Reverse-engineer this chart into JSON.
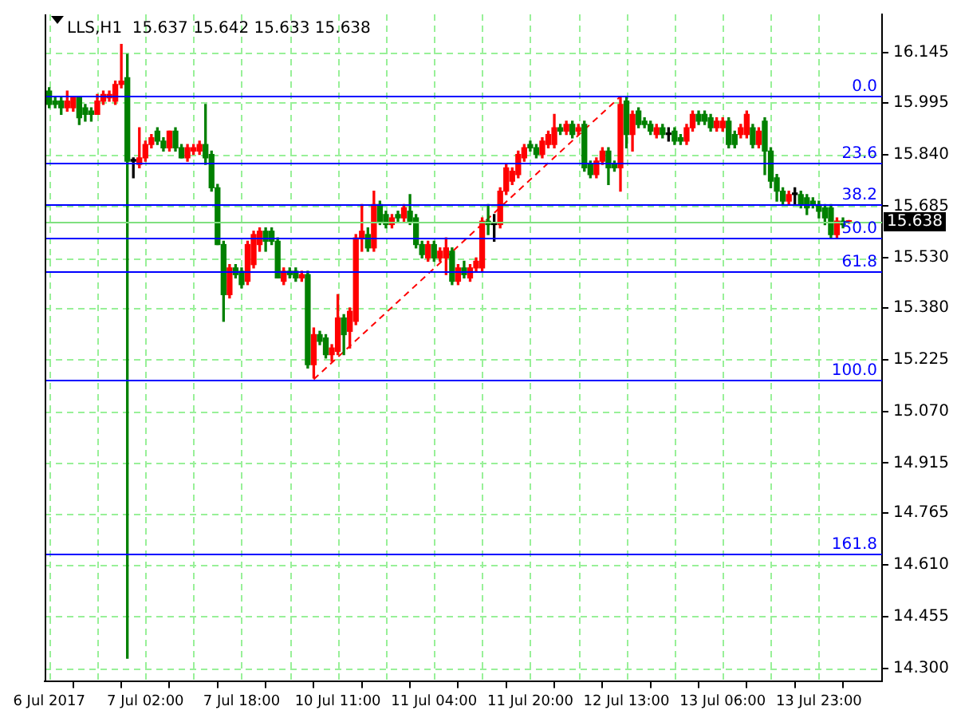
{
  "chart_data": {
    "type": "candlestick",
    "title": "LLS,H1  15.637 15.642 15.633 15.638",
    "categories": [
      "6 Jul 2017",
      null,
      null,
      null,
      null,
      null,
      null,
      null,
      null,
      null,
      null,
      null,
      null,
      null,
      null,
      null,
      "7 Jul 02:00",
      null,
      null,
      null,
      null,
      null,
      null,
      null,
      null,
      null,
      null,
      null,
      null,
      null,
      null,
      null,
      "7 Jul 18:00",
      null,
      null,
      null,
      null,
      null,
      null,
      null,
      null,
      null,
      null,
      null,
      null,
      null,
      null,
      null,
      "10 Jul 11:00",
      null,
      null,
      null,
      null,
      null,
      null,
      null,
      null,
      null,
      null,
      null,
      null,
      null,
      null,
      null,
      "11 Jul 04:00",
      null,
      null,
      null,
      null,
      null,
      null,
      null,
      null,
      null,
      null,
      null,
      null,
      null,
      null,
      null,
      "11 Jul 20:00",
      null,
      null,
      null,
      null,
      null,
      null,
      null,
      null,
      null,
      null,
      null,
      null,
      null,
      null,
      null,
      "12 Jul 13:00",
      null,
      null,
      null,
      null,
      null,
      null,
      null,
      null,
      null,
      null,
      null,
      null,
      null,
      null,
      null,
      "13 Jul 06:00",
      null,
      null,
      null,
      null,
      null,
      null,
      null,
      null,
      null,
      null,
      null,
      null,
      null,
      null,
      null,
      "13 Jul 23:00",
      null,
      null,
      null,
      null,
      null
    ],
    "ohlc": [
      [
        16.03,
        16.04,
        15.98,
        15.99
      ],
      [
        16.0,
        16.01,
        15.98,
        15.99
      ],
      [
        16.0,
        16.01,
        15.96,
        15.98
      ],
      [
        15.98,
        16.03,
        15.97,
        16.0
      ],
      [
        15.98,
        16.01,
        15.97,
        16.01
      ],
      [
        16.01,
        16.01,
        15.93,
        15.95
      ],
      [
        15.98,
        15.99,
        15.94,
        15.96
      ],
      [
        15.97,
        15.98,
        15.94,
        15.96
      ],
      [
        15.96,
        16.02,
        15.96,
        16.0
      ],
      [
        16.0,
        16.03,
        15.99,
        16.02
      ],
      [
        16.01,
        16.03,
        16.0,
        16.02
      ],
      [
        16.0,
        16.06,
        15.99,
        16.05
      ],
      [
        16.05,
        16.17,
        16.04,
        16.06
      ],
      [
        16.07,
        16.14,
        14.33,
        15.82
      ],
      [
        15.82,
        15.83,
        15.77,
        15.82
      ],
      [
        15.81,
        15.92,
        15.8,
        15.83
      ],
      [
        15.83,
        15.88,
        15.82,
        15.87
      ],
      [
        15.87,
        15.9,
        15.86,
        15.89
      ],
      [
        15.91,
        15.92,
        15.87,
        15.88
      ],
      [
        15.88,
        15.89,
        15.85,
        15.86
      ],
      [
        15.86,
        15.91,
        15.85,
        15.91
      ],
      [
        15.91,
        15.92,
        15.85,
        15.86
      ],
      [
        15.86,
        15.87,
        15.83,
        15.83
      ],
      [
        15.83,
        15.87,
        15.82,
        15.86
      ],
      [
        15.85,
        15.87,
        15.84,
        15.86
      ],
      [
        15.85,
        15.88,
        15.84,
        15.87
      ],
      [
        15.87,
        15.99,
        15.81,
        15.83
      ],
      [
        15.84,
        15.85,
        15.73,
        15.74
      ],
      [
        15.74,
        15.75,
        15.57,
        15.57
      ],
      [
        15.57,
        15.58,
        15.34,
        15.42
      ],
      [
        15.42,
        15.51,
        15.41,
        15.5
      ],
      [
        15.5,
        15.51,
        15.47,
        15.48
      ],
      [
        15.49,
        15.5,
        15.44,
        15.45
      ],
      [
        15.46,
        15.58,
        15.45,
        15.57
      ],
      [
        15.51,
        15.61,
        15.5,
        15.6
      ],
      [
        15.57,
        15.62,
        15.55,
        15.61
      ],
      [
        15.61,
        15.62,
        15.55,
        15.58
      ],
      [
        15.61,
        15.62,
        15.57,
        15.58
      ],
      [
        15.58,
        15.59,
        15.47,
        15.47
      ],
      [
        15.46,
        15.5,
        15.45,
        15.49
      ],
      [
        15.49,
        15.5,
        15.47,
        15.48
      ],
      [
        15.49,
        15.5,
        15.46,
        15.47
      ],
      [
        15.47,
        15.49,
        15.46,
        15.48
      ],
      [
        15.48,
        15.49,
        15.2,
        15.21
      ],
      [
        15.21,
        15.32,
        15.17,
        15.3
      ],
      [
        15.3,
        15.31,
        15.27,
        15.28
      ],
      [
        15.29,
        15.3,
        15.23,
        15.24
      ],
      [
        15.24,
        15.27,
        15.22,
        15.26
      ],
      [
        15.25,
        15.42,
        15.24,
        15.35
      ],
      [
        15.35,
        15.36,
        15.24,
        15.3
      ],
      [
        15.31,
        15.38,
        15.26,
        15.37
      ],
      [
        15.34,
        15.6,
        15.33,
        15.59
      ],
      [
        15.59,
        15.69,
        15.55,
        15.61
      ],
      [
        15.6,
        15.62,
        15.55,
        15.56
      ],
      [
        15.56,
        15.73,
        15.55,
        15.69
      ],
      [
        15.69,
        15.7,
        15.63,
        15.64
      ],
      [
        15.66,
        15.67,
        15.62,
        15.63
      ],
      [
        15.63,
        15.66,
        15.62,
        15.65
      ],
      [
        15.66,
        15.67,
        15.64,
        15.65
      ],
      [
        15.65,
        15.69,
        15.64,
        15.68
      ],
      [
        15.67,
        15.72,
        15.63,
        15.64
      ],
      [
        15.65,
        15.66,
        15.56,
        15.57
      ],
      [
        15.57,
        15.58,
        15.53,
        15.54
      ],
      [
        15.53,
        15.58,
        15.52,
        15.57
      ],
      [
        15.57,
        15.58,
        15.52,
        15.53
      ],
      [
        15.53,
        15.56,
        15.52,
        15.55
      ],
      [
        15.53,
        15.59,
        15.48,
        15.56
      ],
      [
        15.55,
        15.56,
        15.45,
        15.46
      ],
      [
        15.46,
        15.51,
        15.45,
        15.5
      ],
      [
        15.5,
        15.52,
        15.47,
        15.48
      ],
      [
        15.47,
        15.51,
        15.46,
        15.5
      ],
      [
        15.5,
        15.53,
        15.49,
        15.52
      ],
      [
        15.5,
        15.65,
        15.49,
        15.64
      ],
      [
        15.64,
        15.69,
        15.6,
        15.63
      ],
      [
        15.63,
        15.66,
        15.58,
        15.63
      ],
      [
        15.63,
        15.74,
        15.62,
        15.73
      ],
      [
        15.73,
        15.81,
        15.72,
        15.8
      ],
      [
        15.76,
        15.8,
        15.75,
        15.79
      ],
      [
        15.78,
        15.85,
        15.77,
        15.84
      ],
      [
        15.83,
        15.87,
        15.82,
        15.86
      ],
      [
        15.87,
        15.88,
        15.85,
        15.86
      ],
      [
        15.86,
        15.87,
        15.83,
        15.84
      ],
      [
        15.84,
        15.89,
        15.83,
        15.88
      ],
      [
        15.87,
        15.91,
        15.86,
        15.9
      ],
      [
        15.87,
        15.96,
        15.86,
        15.92
      ],
      [
        15.92,
        15.93,
        15.9,
        15.91
      ],
      [
        15.91,
        15.94,
        15.9,
        15.93
      ],
      [
        15.93,
        15.94,
        15.89,
        15.9
      ],
      [
        15.91,
        15.93,
        15.9,
        15.92
      ],
      [
        15.93,
        15.94,
        15.79,
        15.8
      ],
      [
        15.81,
        15.82,
        15.77,
        15.78
      ],
      [
        15.78,
        15.83,
        15.77,
        15.82
      ],
      [
        15.82,
        15.86,
        15.81,
        15.85
      ],
      [
        15.85,
        15.86,
        15.75,
        15.8
      ],
      [
        15.81,
        15.82,
        15.79,
        15.8
      ],
      [
        15.8,
        16.01,
        15.73,
        15.99
      ],
      [
        16.0,
        16.01,
        15.86,
        15.9
      ],
      [
        15.9,
        15.97,
        15.85,
        15.96
      ],
      [
        15.97,
        15.98,
        15.92,
        15.93
      ],
      [
        15.94,
        15.95,
        15.92,
        15.93
      ],
      [
        15.93,
        15.94,
        15.9,
        15.91
      ],
      [
        15.9,
        15.93,
        15.89,
        15.92
      ],
      [
        15.92,
        15.93,
        15.89,
        15.9
      ],
      [
        15.9,
        15.92,
        15.88,
        15.9
      ],
      [
        15.91,
        15.92,
        15.87,
        15.88
      ],
      [
        15.89,
        15.9,
        15.87,
        15.88
      ],
      [
        15.88,
        15.93,
        15.87,
        15.92
      ],
      [
        15.92,
        15.97,
        15.91,
        15.96
      ],
      [
        15.96,
        15.97,
        15.93,
        15.94
      ],
      [
        15.96,
        15.97,
        15.93,
        15.94
      ],
      [
        15.95,
        15.96,
        15.91,
        15.92
      ],
      [
        15.92,
        15.95,
        15.91,
        15.94
      ],
      [
        15.92,
        15.95,
        15.91,
        15.94
      ],
      [
        15.94,
        15.95,
        15.86,
        15.87
      ],
      [
        15.9,
        15.91,
        15.86,
        15.87
      ],
      [
        15.9,
        15.93,
        15.89,
        15.92
      ],
      [
        15.9,
        15.97,
        15.89,
        15.96
      ],
      [
        15.92,
        15.93,
        15.86,
        15.87
      ],
      [
        15.87,
        15.92,
        15.86,
        15.91
      ],
      [
        15.94,
        15.95,
        15.78,
        15.85
      ],
      [
        15.85,
        15.86,
        15.74,
        15.76
      ],
      [
        15.77,
        15.78,
        15.7,
        15.73
      ],
      [
        15.73,
        15.74,
        15.69,
        15.7
      ],
      [
        15.7,
        15.73,
        15.69,
        15.72
      ],
      [
        15.72,
        15.74,
        15.69,
        15.72
      ],
      [
        15.72,
        15.73,
        15.68,
        15.69
      ],
      [
        15.71,
        15.72,
        15.66,
        15.68
      ],
      [
        15.7,
        15.71,
        15.68,
        15.69
      ],
      [
        15.69,
        15.7,
        15.65,
        15.67
      ],
      [
        15.68,
        15.69,
        15.63,
        15.65
      ],
      [
        15.68,
        15.69,
        15.59,
        15.6
      ],
      [
        15.6,
        15.65,
        15.59,
        15.64
      ],
      [
        15.64,
        15.65,
        15.62,
        15.63
      ],
      [
        15.637,
        15.642,
        15.633,
        15.638
      ]
    ],
    "colors": [
      "#008000",
      "#008000",
      "#008000",
      "#ff0000",
      "#ff0000",
      "#008000",
      "#008000",
      "#008000",
      "#ff0000",
      "#ff0000",
      "#ff0000",
      "#ff0000",
      "#ff0000",
      "#008000",
      "#000000",
      "#ff0000",
      "#ff0000",
      "#ff0000",
      "#008000",
      "#008000",
      "#ff0000",
      "#008000",
      "#008000",
      "#ff0000",
      "#ff0000",
      "#ff0000",
      "#008000",
      "#008000",
      "#008000",
      "#008000",
      "#ff0000",
      "#008000",
      "#008000",
      "#ff0000",
      "#ff0000",
      "#ff0000",
      "#008000",
      "#008000",
      "#008000",
      "#ff0000",
      "#008000",
      "#008000",
      "#ff0000",
      "#008000",
      "#ff0000",
      "#008000",
      "#008000",
      "#ff0000",
      "#ff0000",
      "#008000",
      "#ff0000",
      "#ff0000",
      "#ff0000",
      "#008000",
      "#ff0000",
      "#008000",
      "#008000",
      "#ff0000",
      "#008000",
      "#ff0000",
      "#008000",
      "#008000",
      "#008000",
      "#ff0000",
      "#008000",
      "#ff0000",
      "#ff0000",
      "#008000",
      "#ff0000",
      "#008000",
      "#ff0000",
      "#ff0000",
      "#ff0000",
      "#008000",
      "#000000",
      "#ff0000",
      "#ff0000",
      "#ff0000",
      "#ff0000",
      "#ff0000",
      "#008000",
      "#008000",
      "#ff0000",
      "#ff0000",
      "#ff0000",
      "#008000",
      "#ff0000",
      "#008000",
      "#ff0000",
      "#008000",
      "#008000",
      "#ff0000",
      "#ff0000",
      "#008000",
      "#008000",
      "#ff0000",
      "#008000",
      "#ff0000",
      "#008000",
      "#008000",
      "#008000",
      "#ff0000",
      "#008000",
      "#000000",
      "#008000",
      "#008000",
      "#ff0000",
      "#ff0000",
      "#008000",
      "#008000",
      "#008000",
      "#ff0000",
      "#ff0000",
      "#008000",
      "#008000",
      "#ff0000",
      "#ff0000",
      "#008000",
      "#ff0000",
      "#008000",
      "#008000",
      "#008000",
      "#008000",
      "#ff0000",
      "#000000",
      "#008000",
      "#008000",
      "#008000",
      "#008000",
      "#008000",
      "#008000",
      "#ff0000",
      "#008000",
      "#ff0000"
    ],
    "series": [
      {
        "type": "line",
        "color": "#ff0000",
        "line_style": "dashed",
        "values": [
          null,
          null,
          null,
          null,
          null,
          null,
          null,
          null,
          null,
          null,
          null,
          null,
          null,
          null,
          null,
          null,
          null,
          null,
          null,
          null,
          null,
          null,
          null,
          null,
          null,
          null,
          null,
          null,
          null,
          null,
          null,
          null,
          null,
          null,
          null,
          null,
          null,
          null,
          null,
          null,
          null,
          null,
          null,
          null,
          15.166,
          null,
          null,
          null,
          null,
          null,
          null,
          null,
          null,
          null,
          null,
          null,
          null,
          null,
          null,
          null,
          null,
          null,
          null,
          null,
          null,
          null,
          null,
          null,
          null,
          null,
          null,
          null,
          null,
          null,
          null,
          null,
          null,
          null,
          null,
          null,
          null,
          null,
          null,
          null,
          null,
          null,
          null,
          null,
          null,
          null,
          null,
          null,
          null,
          null,
          null,
          16.014,
          null,
          null,
          null,
          null,
          null,
          null,
          null,
          null,
          null,
          null,
          null,
          null,
          null,
          null,
          null,
          null,
          null,
          null,
          null,
          null,
          null,
          null,
          null,
          null,
          null,
          null,
          null,
          null,
          null,
          null,
          null,
          null,
          null,
          null,
          null,
          null,
          null,
          null
        ]
      }
    ],
    "ylim": [
      14.26,
      16.26
    ],
    "yticks": [
      {
        "value": 14.3,
        "label": "14.300"
      },
      14.455,
      {
        "value": 14.61,
        "label": "14.610"
      },
      14.765,
      14.915,
      {
        "value": 15.07,
        "label": "15.070"
      },
      15.225,
      {
        "value": 15.38,
        "label": "15.380"
      },
      {
        "value": 15.53,
        "label": "15.530"
      },
      15.685,
      {
        "value": 15.84,
        "label": "15.840"
      },
      15.995,
      16.145
    ],
    "ref_lines": [
      {
        "axis": "y",
        "value": 16.014,
        "color": "#0000ff"
      },
      {
        "axis": "y",
        "value": 15.814,
        "color": "#0000ff"
      },
      {
        "axis": "y",
        "value": 15.69,
        "color": "#0000ff"
      },
      {
        "axis": "y",
        "value": 15.59,
        "color": "#0000ff"
      },
      {
        "axis": "y",
        "value": 15.49,
        "color": "#0000ff"
      },
      {
        "axis": "y",
        "value": 15.166,
        "color": "#0000ff"
      },
      {
        "axis": "y",
        "value": 14.642,
        "color": "#0000ff"
      },
      {
        "axis": "y",
        "value": 15.638,
        "label": "15.638",
        "color": "#7fe07f"
      }
    ],
    "annotations": [
      {
        "text": "0.0",
        "y": 16.014
      },
      {
        "text": "23.6",
        "y": 15.814
      },
      {
        "text": "38.2",
        "y": 15.69
      },
      {
        "text": "50.0",
        "y": 15.59
      },
      {
        "text": "61.8",
        "y": 15.49
      },
      {
        "text": "100.0",
        "y": 15.166
      },
      {
        "text": "161.8",
        "y": 14.642
      }
    ],
    "grid": true,
    "legend": false
  }
}
